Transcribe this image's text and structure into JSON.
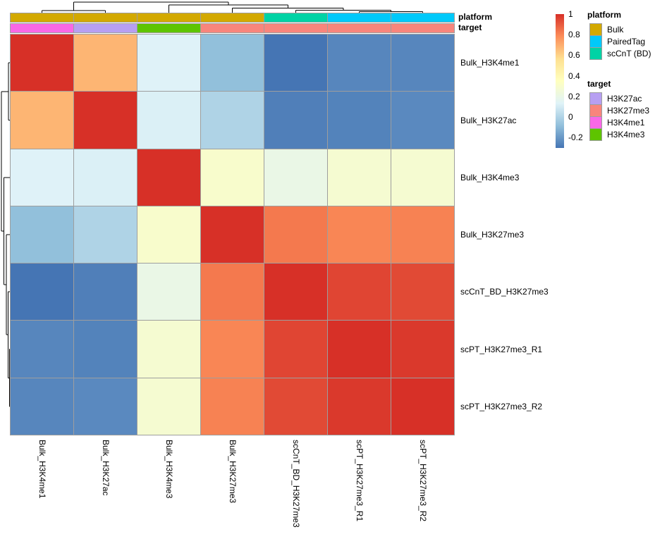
{
  "chart_data": {
    "type": "heatmap",
    "description": "Clustered pairwise correlation heatmap of ChIP/CUT&Tag samples with row/column dendrograms and column annotations",
    "labels": [
      "Bulk_H3K4me1",
      "Bulk_H3K27ac",
      "Bulk_H3K4me3",
      "Bulk_H3K27me3",
      "scCnT_BD_H3K27me3",
      "scPT_H3K27me3_R1",
      "scPT_H3K27me3_R2"
    ],
    "matrix": [
      [
        1,
        0.68,
        0.13,
        -0.08,
        -0.3,
        -0.25,
        -0.25
      ],
      [
        0.68,
        1,
        0.12,
        0,
        -0.27,
        -0.26,
        -0.24
      ],
      [
        0.13,
        0.12,
        1,
        0.3,
        0.2,
        0.28,
        0.28
      ],
      [
        -0.08,
        0,
        0.3,
        1,
        0.83,
        0.8,
        0.81
      ],
      [
        -0.3,
        -0.27,
        0.2,
        0.83,
        1,
        0.95,
        0.94
      ],
      [
        -0.25,
        -0.26,
        0.28,
        0.8,
        0.95,
        1,
        0.98
      ],
      [
        -0.25,
        -0.24,
        0.28,
        0.81,
        0.94,
        0.98,
        1
      ]
    ],
    "value_range": [
      -0.3,
      1
    ],
    "colormap_stops": [
      "#4575b4",
      "#91bfdb",
      "#e0f3f8",
      "#ffffbf",
      "#fee090",
      "#fc8d59",
      "#d73027"
    ],
    "colorbar_ticks": [
      {
        "label": "1",
        "value": 1
      },
      {
        "label": "0.8",
        "value": 0.8
      },
      {
        "label": "0.6",
        "value": 0.6
      },
      {
        "label": "0.4",
        "value": 0.4
      },
      {
        "label": "0.2",
        "value": 0.2
      },
      {
        "label": "0",
        "value": 0
      },
      {
        "label": "-0.2",
        "value": -0.2
      }
    ],
    "annotation_row_labels": [
      "platform",
      "target"
    ],
    "column_annotations": {
      "platform": [
        "Bulk",
        "Bulk",
        "Bulk",
        "Bulk",
        "scCnT (BD)",
        "PairedTag",
        "PairedTag"
      ],
      "target": [
        "H3K4me1",
        "H3K27ac",
        "H3K4me3",
        "H3K27me3",
        "H3K27me3",
        "H3K27me3",
        "H3K27me3"
      ]
    },
    "annotation_colors": {
      "platform": {
        "Bulk": "#d3a900",
        "PairedTag": "#00c9fa",
        "scCnT (BD)": "#00d3a5"
      },
      "target": {
        "H3K27ac": "#b79ff2",
        "H3K27me3": "#f8857c",
        "H3K4me1": "#f968e6",
        "H3K4me3": "#5ec400"
      }
    },
    "dendrogram_merges": [
      {
        "a": {
          "leaf": 5
        },
        "b": {
          "leaf": 6
        },
        "h": 0.1
      },
      {
        "a": {
          "leaf": 4
        },
        "b": {
          "merge": 0
        },
        "h": 0.24
      },
      {
        "a": {
          "leaf": 3
        },
        "b": {
          "merge": 1
        },
        "h": 0.45
      },
      {
        "a": {
          "leaf": 2
        },
        "b": {
          "merge": 2
        },
        "h": 0.72
      },
      {
        "a": {
          "leaf": 0
        },
        "b": {
          "leaf": 1
        },
        "h": 0.215
      },
      {
        "a": {
          "merge": 4
        },
        "b": {
          "merge": 3
        },
        "h": 1.0
      }
    ],
    "gridline_color": "#9e9e9e",
    "dendrogram_color": "#000000"
  },
  "legend": {
    "platform": {
      "title": "platform",
      "items": [
        {
          "label": "Bulk",
          "color": "#d3a900"
        },
        {
          "label": "PairedTag",
          "color": "#00c9fa"
        },
        {
          "label": "scCnT (BD)",
          "color": "#00d3a5"
        }
      ]
    },
    "target": {
      "title": "target",
      "items": [
        {
          "label": "H3K27ac",
          "color": "#b79ff2"
        },
        {
          "label": "H3K27me3",
          "color": "#f8857c"
        },
        {
          "label": "H3K4me1",
          "color": "#f968e6"
        },
        {
          "label": "H3K4me3",
          "color": "#5ec400"
        }
      ]
    }
  }
}
